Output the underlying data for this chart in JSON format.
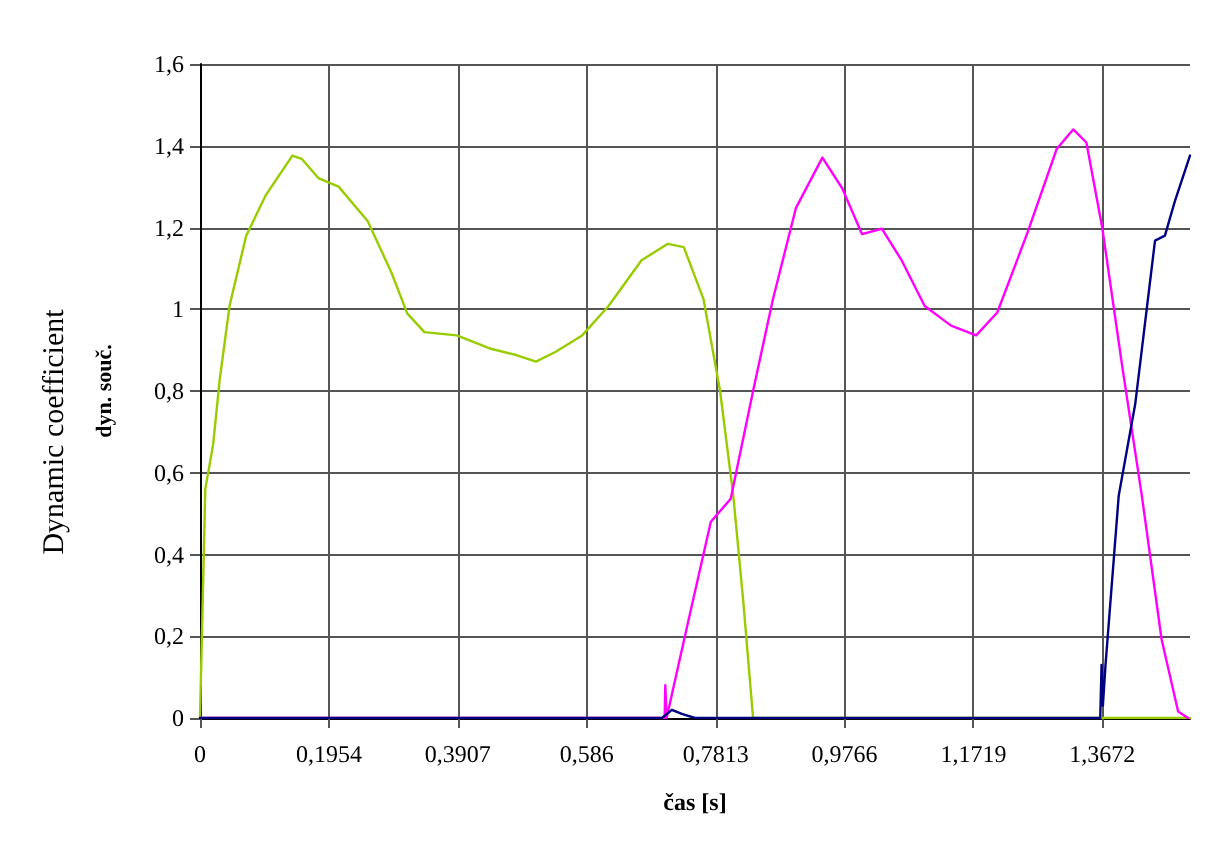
{
  "chart_data": {
    "type": "line",
    "xlabel": "čas [s]",
    "ylabel": "dyn. souč.",
    "annotations": [
      "Dynamic coefficient"
    ],
    "xlim": [
      0,
      1.5
    ],
    "xticks": [
      0,
      {
        "value": 0.1954,
        "label": "0,1954"
      },
      {
        "value": 0.3907,
        "label": "0,3907"
      },
      {
        "value": 0.586,
        "label": "0,586"
      },
      {
        "value": 0.7813,
        "label": "0,7813"
      },
      {
        "value": 0.9766,
        "label": "0,9766"
      },
      {
        "value": 1.1719,
        "label": "1,1719"
      },
      {
        "value": 1.3672,
        "label": "1,3672"
      }
    ],
    "ylim": [
      0,
      1.6
    ],
    "yticks": [
      0,
      {
        "value": 0.2,
        "label": "0,2"
      },
      {
        "value": 0.4,
        "label": "0,4"
      },
      {
        "value": 0.6,
        "label": "0,6"
      },
      {
        "value": 0.8,
        "label": "0,8"
      },
      1,
      {
        "value": 1.2,
        "label": "1,2"
      },
      {
        "value": 1.4,
        "label": "1,4"
      },
      {
        "value": 1.6,
        "label": "1,6"
      }
    ],
    "grid": true,
    "marker": "none",
    "line_style": "solid",
    "series": [
      {
        "color": "#99cc00",
        "x": [
          0,
          0.008,
          0.02,
          0.03,
          0.045,
          0.07,
          0.1,
          0.14,
          0.154,
          0.18,
          0.21,
          0.254,
          0.29,
          0.314,
          0.34,
          0.389,
          0.439,
          0.479,
          0.509,
          0.539,
          0.579,
          0.619,
          0.669,
          0.709,
          0.733,
          0.763,
          0.788,
          0.808,
          0.823,
          0.838,
          1.5
        ],
        "values": [
          0,
          0.56,
          0.67,
          0.83,
          1.01,
          1.18,
          1.28,
          1.376,
          1.368,
          1.32,
          1.3,
          1.216,
          1.09,
          0.99,
          0.944,
          0.936,
          0.904,
          0.888,
          0.872,
          0.896,
          0.936,
          1.008,
          1.12,
          1.16,
          1.152,
          1.024,
          0.8,
          0.544,
          0.288,
          0,
          0
        ]
      },
      {
        "color": "#ff00ff",
        "x": [
          0,
          0.704,
          0.705,
          0.707,
          0.738,
          0.774,
          0.804,
          0.838,
          0.868,
          0.903,
          0.943,
          0.973,
          1.003,
          1.033,
          1.063,
          1.098,
          1.138,
          1.176,
          1.208,
          1.253,
          1.298,
          1.323,
          1.343,
          1.367,
          1.397,
          1.427,
          1.457,
          1.482,
          1.497
        ],
        "values": [
          0,
          0,
          0.08,
          0,
          0.224,
          0.48,
          0.536,
          0.8,
          1.024,
          1.248,
          1.371,
          1.296,
          1.184,
          1.197,
          1.12,
          1.008,
          0.96,
          0.936,
          0.992,
          1.184,
          1.392,
          1.44,
          1.408,
          1.2,
          0.864,
          0.544,
          0.192,
          0.016,
          0
        ]
      },
      {
        "color": "#000080",
        "x": [
          0,
          0.7,
          0.715,
          0.73,
          0.75,
          1.364,
          1.366,
          1.368,
          1.372,
          1.392,
          1.417,
          1.447,
          1.462,
          1.477,
          1.5
        ],
        "values": [
          0,
          0,
          0.02,
          0.01,
          0,
          0,
          0.13,
          0.03,
          0.13,
          0.544,
          0.768,
          1.168,
          1.18,
          1.264,
          1.376
        ]
      }
    ]
  }
}
